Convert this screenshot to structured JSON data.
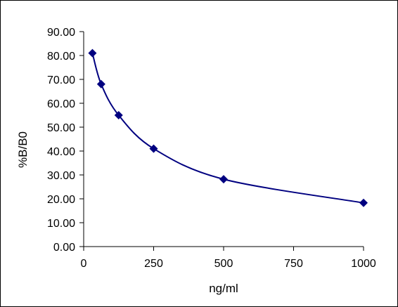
{
  "chart_data": {
    "type": "scatter",
    "title": "",
    "xlabel": "ng/ml",
    "ylabel": "%B/B0",
    "xlim": [
      0,
      1000
    ],
    "ylim": [
      0,
      90
    ],
    "x_ticks": [
      0,
      250,
      500,
      750,
      1000
    ],
    "x_tick_labels": [
      "0",
      "250",
      "500",
      "750",
      "1000"
    ],
    "y_ticks": [
      0,
      10,
      20,
      30,
      40,
      50,
      60,
      70,
      80,
      90
    ],
    "y_tick_labels": [
      "0.00",
      "10.00",
      "20.00",
      "30.00",
      "40.00",
      "50.00",
      "60.00",
      "70.00",
      "80.00",
      "90.00"
    ],
    "grid": false,
    "legend": "none",
    "smoothed_line": true,
    "marker": "diamond",
    "color": "#000080",
    "series": [
      {
        "x": [
          31.25,
          62.5,
          125,
          250,
          500,
          1000
        ],
        "y": [
          81.0,
          68.0,
          55.0,
          41.0,
          28.2,
          18.3
        ]
      }
    ]
  }
}
